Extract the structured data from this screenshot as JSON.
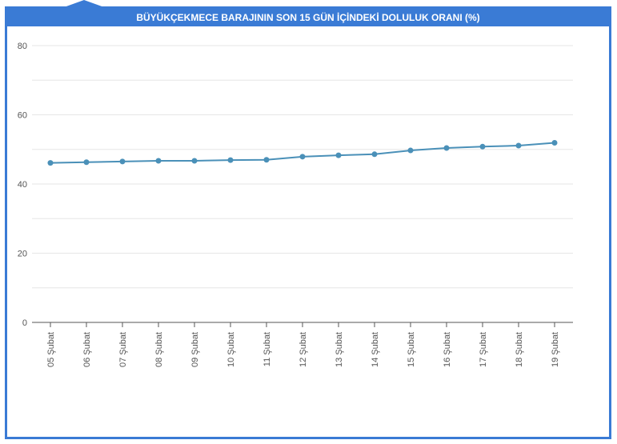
{
  "colors": {
    "frame": "#3a7bd5",
    "line": "#4a90b8",
    "grid": "#e6e6e6",
    "axis": "#555555"
  },
  "chart_data": {
    "type": "line",
    "title": "BÜYÜKÇEKMECE BARAJININ SON 15 GÜN İÇİNDEKİ DOLULUK ORANI (%)",
    "xlabel": "",
    "ylabel": "",
    "ylim": [
      0,
      80
    ],
    "yticks": [
      0,
      20,
      40,
      60,
      80
    ],
    "grid": true,
    "legend": "none",
    "categories": [
      "05 Şubat",
      "06 Şubat",
      "07 Şubat",
      "08 Şubat",
      "09 Şubat",
      "10 Şubat",
      "11 Şubat",
      "12 Şubat",
      "13 Şubat",
      "14 Şubat",
      "15 Şubat",
      "16 Şubat",
      "17 Şubat",
      "18 Şubat",
      "19 Şubat"
    ],
    "series": [
      {
        "values": [
          46.1,
          46.3,
          46.5,
          46.7,
          46.7,
          46.9,
          47.0,
          47.9,
          48.3,
          48.6,
          49.7,
          50.4,
          50.8,
          51.1,
          51.9
        ]
      }
    ]
  }
}
